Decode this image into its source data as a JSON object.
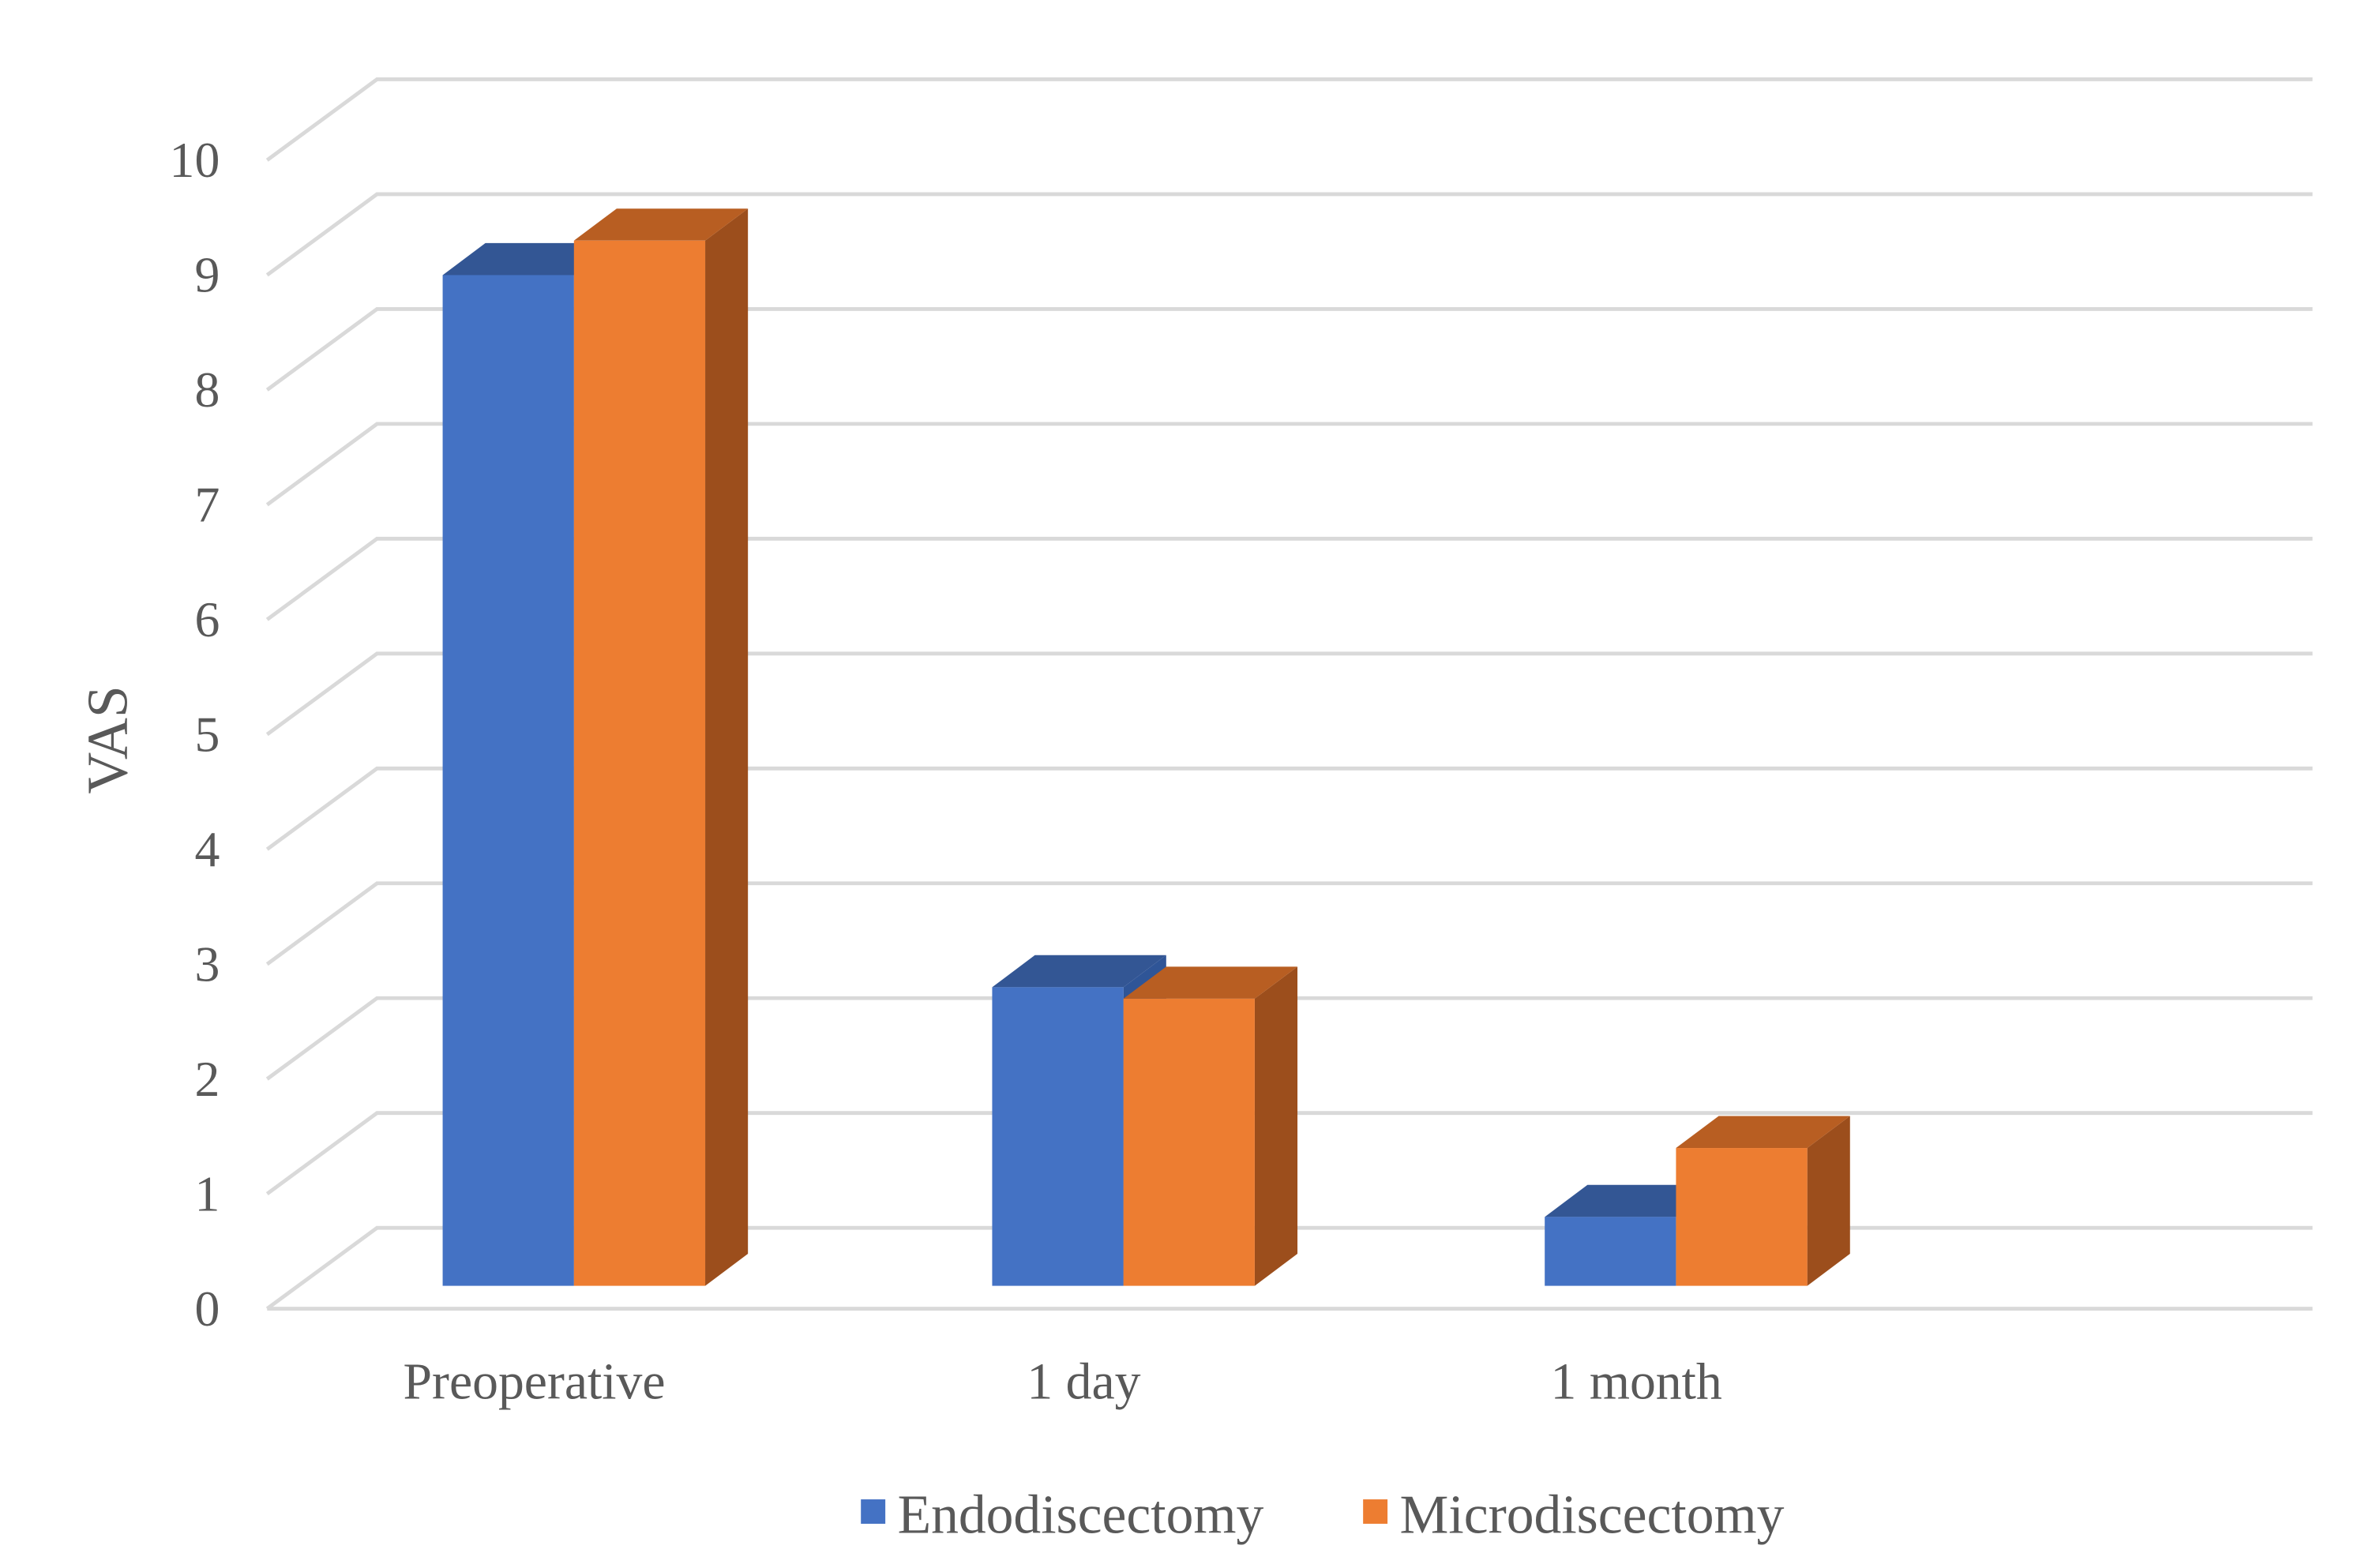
{
  "chart_data": {
    "type": "bar",
    "style": "3d-clustered-column",
    "title": "",
    "xlabel": "",
    "ylabel": "VAS",
    "ylim": [
      0,
      10
    ],
    "yticks": [
      "0",
      "1",
      "2",
      "3",
      "4",
      "5",
      "6",
      "7",
      "8",
      "9",
      "10"
    ],
    "grid": true,
    "legend_position": "bottom",
    "categories": [
      "Preoperative",
      "1 day",
      "1 month"
    ],
    "series": [
      {
        "name": "Endodiscectomy",
        "values": [
          8.8,
          2.6,
          0.6
        ],
        "color": "#4472C4",
        "top_color": "#335694",
        "side_color": "#2F5597"
      },
      {
        "name": "Microdiscectomy",
        "values": [
          9.1,
          2.5,
          1.2
        ],
        "color": "#ED7D31",
        "top_color": "#B85E22",
        "side_color": "#9C4E1C"
      }
    ]
  }
}
